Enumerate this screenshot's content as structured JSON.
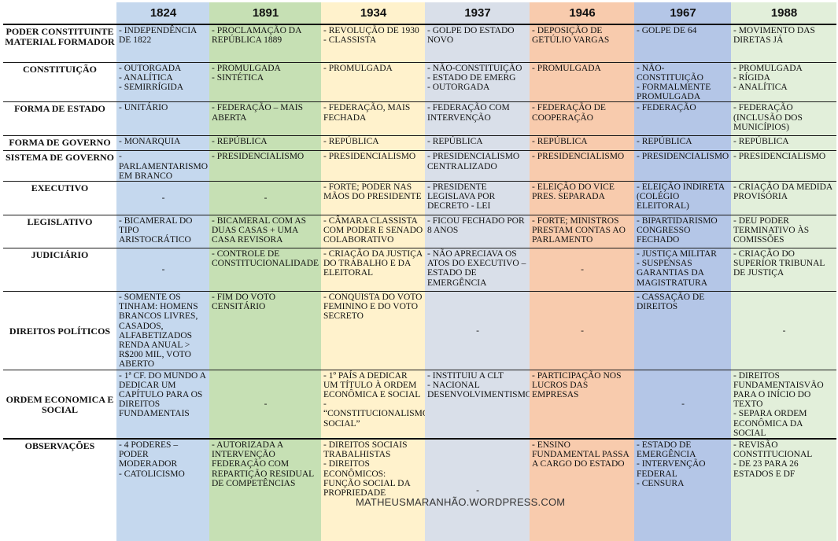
{
  "colors": {
    "1824": "#c5d8ee",
    "1891": "#c6e0b4",
    "1934": "#fff2cc",
    "1937": "#d9dfe9",
    "1946": "#f8cbad",
    "1967": "#b4c6e7",
    "1988": "#e2efda"
  },
  "years": [
    "1824",
    "1891",
    "1934",
    "1937",
    "1946",
    "1967",
    "1988"
  ],
  "rows": [
    {
      "label": "PODER CONSTITUINTE MATERIAL FORMADOR",
      "height": 48,
      "cells": [
        [
          "- INDEPENDÊNCIA DE 1822"
        ],
        [
          "- PROCLAMAÇÃO DA REPÚBLICA 1889"
        ],
        [
          "- REVOLUÇÃO DE 1930 - CLASSISTA"
        ],
        [
          "- GOLPE DO ESTADO NOVO"
        ],
        [
          "- DEPOSIÇÃO DE GETÚLIO VARGAS"
        ],
        [
          "- GOLPE DE 64"
        ],
        [
          "- MOVIMENTO DAS DIRETAS JÁ"
        ]
      ]
    },
    {
      "label": "CONSTITUIÇÃO",
      "height": 42,
      "cells": [
        [
          "- OUTORGADA",
          "- ANALÍTICA",
          "- SEMIRRÍGIDA"
        ],
        [
          "- PROMULGADA",
          "- SINTÉTICA"
        ],
        [
          "- PROMULGADA"
        ],
        [
          "- NÃO-CONSTITUIÇÃO",
          "- ESTADO DE EMERG",
          "- OUTORGADA"
        ],
        [
          "- PROMULGADA"
        ],
        [
          "- NÃO-CONSTITUIÇÃO",
          "- FORMALMENTE PROMULGADA"
        ],
        [
          "- PROMULGADA",
          "- RÍGIDA",
          "- ANALÍTICA"
        ]
      ]
    },
    {
      "label": "FORMA DE ESTADO",
      "height": 43,
      "cells": [
        [
          "- UNITÁRIO"
        ],
        [
          "- FEDERAÇÃO – MAIS ABERTA"
        ],
        [
          "- FEDERAÇÃO, MAIS FECHADA"
        ],
        [
          "- FEDERAÇÃO COM INTERVENÇÃO"
        ],
        [
          "- FEDERAÇÃO DE COOPERAÇÃO"
        ],
        [
          "- FEDERAÇÃO"
        ],
        [
          "- FEDERAÇÃO (INCLUSÃO DOS MUNICÍPIOS)"
        ]
      ]
    },
    {
      "label": "FORMA DE GOVERNO",
      "height": 19,
      "cells": [
        [
          "- MONARQUIA"
        ],
        [
          "- REPÚBLICA"
        ],
        [
          "- REPÚBLICA"
        ],
        [
          "- REPÚBLICA"
        ],
        [
          "- REPÚBLICA"
        ],
        [
          "- REPÚBLICA"
        ],
        [
          "- REPÚBLICA"
        ]
      ]
    },
    {
      "label": "SISTEMA DE GOVERNO",
      "height": 32,
      "cells": [
        [
          "-PARLAMENTARISMO EM BRANCO"
        ],
        [
          "- PRESIDENCIALISMO"
        ],
        [
          "- PRESIDENCIALISMO"
        ],
        [
          "- PRESIDENCIALISMO CENTRALIZADO"
        ],
        [
          "- PRESIDENCIALISMO"
        ],
        [
          "- PRESIDENCIALISMO"
        ],
        [
          "- PRESIDENCIALISMO"
        ]
      ]
    },
    {
      "label": "EXECUTIVO",
      "height": 43,
      "cells": [
        [
          "-"
        ],
        [
          "-"
        ],
        [
          "- FORTE; PODER NAS MÃOS DO PRESIDENTE"
        ],
        [
          "- PRESIDENTE LEGISLAVA POR DECRETO - LEI"
        ],
        [
          "- ELEIÇÃO DO VICE PRES. SEPARADA"
        ],
        [
          "- ELEIÇÃO INDIRETA (COLÉGIO ELEITORAL)"
        ],
        [
          "- CRIAÇÃO DA MEDIDA PROVISÓRIA"
        ]
      ]
    },
    {
      "label": "LEGISLATIVO",
      "height": 42,
      "cells": [
        [
          "- BICAMERAL DO TIPO ARISTOCRÁTICO"
        ],
        [
          "- BICAMERAL COM AS DUAS CASAS + UMA CASA REVISORA"
        ],
        [
          "- CÂMARA CLASSISTA COM PODER E SENADO COLABORATIVO"
        ],
        [
          "- FICOU FECHADO POR 8 ANOS"
        ],
        [
          "- FORTE; MINISTROS PRESTAM CONTAS AO PARLAMENTO"
        ],
        [
          "- BIPARTIDARISMO CONGRESSO FECHADO"
        ],
        [
          "- DEU PODER TERMINATIVO ÀS COMISSÕES"
        ]
      ]
    },
    {
      "label": "JUDICIÁRIO",
      "height": 55,
      "cells": [
        [
          "-"
        ],
        [
          "- CONTROLE DE CONSTITUCIONALIDADE"
        ],
        [
          "- CRIAÇÃO DA JUSTIÇA DO TRABALHO E DA ELEITORAL"
        ],
        [
          "- NÃO APRECIAVA OS ATOS DO EXECUTIVO – ESTADO DE EMERGÊNCIA"
        ],
        [
          "-"
        ],
        [
          "- JUSTIÇA MILITAR",
          "- SUSPENSAS GARANTIAS DA MAGISTRATURA"
        ],
        [
          "- CRIAÇÃO DO SUPERIOR TRIBUNAL DE JUSTIÇA"
        ]
      ]
    },
    {
      "label": "DIREITOS POLÍTICOS",
      "height": 92,
      "cells": [
        [
          "- SOMENTE OS TINHAM: HOMENS BRANCOS LIVRES, CASADOS, ALFABETIZADOS RENDA ANUAL > R$200 MIL, VOTO ABERTO"
        ],
        [
          "- FIM DO VOTO CENSITÁRIO"
        ],
        [
          "- CONQUISTA DO VOTO FEMININO E DO VOTO SECRETO"
        ],
        [
          "-"
        ],
        [
          "-"
        ],
        [
          "- CASSAÇÃO DE DIREITOS"
        ],
        [
          "-"
        ]
      ]
    },
    {
      "label": "ORDEM ECONOMICA E SOCIAL",
      "height": 79,
      "cells": [
        [
          "- 1ª CF. DO MUNDO A DEDICAR UM CAPÍTULO PARA OS DIREITOS FUNDAMENTAIS"
        ],
        [
          "-"
        ],
        [
          "- 1º PAÍS A DEDICAR UM TÍTULO À ORDEM ECONÔMICA E SOCIAL - “CONSTITUCIONALISMO SOCIAL”"
        ],
        [
          "- INSTITUIU A CLT",
          "- NACIONAL DESENVOLVIMENTISMO"
        ],
        [
          "- PARTICIPAÇÃO NOS LUCROS DAS EMPRESAS"
        ],
        [
          "-"
        ],
        [
          "- DIREITOS FUNDAMENTAISVÃO PARA O INÍCIO DO TEXTO",
          "- SEPARA ORDEM ECONÔMICA DA SOCIAL"
        ]
      ]
    },
    {
      "label": "OBSERVAÇÕES",
      "height": 130,
      "cells": [
        [
          "- 4 PODERES – PODER MODERADOR",
          "- CATOLICISMO"
        ],
        [
          "- AUTORIZADA A INTERVENÇÃO FEDERAÇÃO COM REPARTIÇÃO RESIDUAL DE COMPETÊNCIAS"
        ],
        [
          "- DIREITOS SOCIAIS TRABALHISTAS",
          "- DIREITOS ECONÔMICOS: FUNÇÃO SOCIAL DA PROPRIEDADE"
        ],
        [
          "-"
        ],
        [
          "- ENSINO FUNDAMENTAL PASSA A CARGO DO ESTADO"
        ],
        [
          "- ESTADO DE EMERGÊNCIA",
          "- INTERVENÇÃO FEDERAL",
          "- CENSURA"
        ],
        [
          "- REVISÃO CONSTITUCIONAL",
          "- DE 23 PARA 26 ESTADOS E DF"
        ]
      ]
    }
  ],
  "watermark": "MATHEUSMARANHÃO.WORDPRESS.COM"
}
